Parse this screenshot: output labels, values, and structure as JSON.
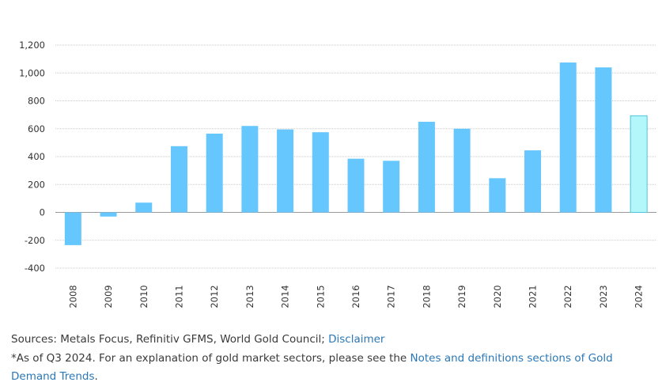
{
  "chart_data": {
    "type": "bar",
    "categories": [
      "2008",
      "2009",
      "2010",
      "2011",
      "2012",
      "2013",
      "2014",
      "2015",
      "2016",
      "2017",
      "2018",
      "2019",
      "2020",
      "2021",
      "2022",
      "2023",
      "2024"
    ],
    "values": [
      -235,
      -30,
      70,
      475,
      565,
      620,
      595,
      575,
      385,
      370,
      650,
      600,
      245,
      445,
      1075,
      1040,
      693
    ],
    "highlight_index": 16,
    "ylim": [
      -400,
      1200
    ],
    "yticks": [
      -400,
      -200,
      0,
      200,
      400,
      600,
      800,
      1000,
      1200
    ],
    "ytick_labels": [
      "-400",
      "-200",
      "0",
      "200",
      "400",
      "600",
      "800",
      "1,000",
      "1,200"
    ],
    "grid": true,
    "colors": {
      "bar": "#66c7ff",
      "highlight_fill": "#b3f7fb",
      "highlight_stroke": "#4fc3d9",
      "grid": "#c8c8c8",
      "zero": "#999999"
    }
  },
  "footer": {
    "sources_text": "Sources: Metals Focus, Refinitiv GFMS, World Gold Council; ",
    "disclaimer_link": "Disclaimer",
    "note_text": "*As of Q3 2024. For an explanation of gold market sectors, please see the ",
    "notes_link": "Notes and definitions sections of Gold Demand Trends",
    "note_end": "."
  }
}
